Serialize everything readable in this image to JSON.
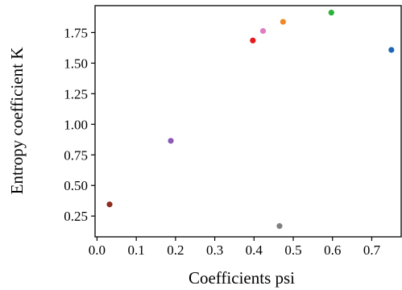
{
  "chart_data": {
    "type": "scatter",
    "title": "",
    "xlabel": "Coefficients psi",
    "ylabel": "Entropy coefficient K",
    "xlim": [
      -0.005,
      0.775
    ],
    "ylim": [
      0.08,
      1.97
    ],
    "xticks": [
      "0.0",
      "0.1",
      "0.2",
      "0.3",
      "0.4",
      "0.5",
      "0.6",
      "0.7"
    ],
    "yticks": [
      "0.25",
      "0.50",
      "0.75",
      "1.00",
      "1.25",
      "1.50",
      "1.75"
    ],
    "grid": false,
    "legend": false,
    "points": [
      {
        "x": 0.032,
        "y": 0.345,
        "color": "#8b2d20"
      },
      {
        "x": 0.188,
        "y": 0.865,
        "color": "#8d59b5"
      },
      {
        "x": 0.397,
        "y": 1.685,
        "color": "#e6191c"
      },
      {
        "x": 0.423,
        "y": 1.763,
        "color": "#e07cc4"
      },
      {
        "x": 0.474,
        "y": 1.838,
        "color": "#f18825"
      },
      {
        "x": 0.465,
        "y": 0.168,
        "color": "#808080"
      },
      {
        "x": 0.597,
        "y": 1.913,
        "color": "#2bb33a"
      },
      {
        "x": 0.75,
        "y": 1.608,
        "color": "#1f66b8"
      }
    ]
  }
}
